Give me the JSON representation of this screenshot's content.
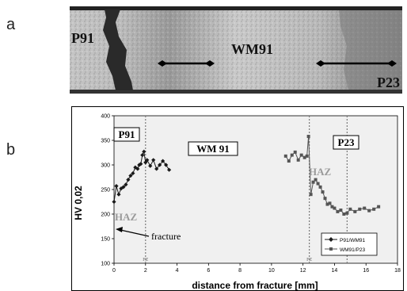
{
  "panels": {
    "a": "a",
    "b": "b"
  },
  "micrograph": {
    "labels": {
      "left": "P91",
      "center": "WM91",
      "right": "P23"
    }
  },
  "colors": {
    "frame": "#000000",
    "plot_bg": "#f0f0f0",
    "grid_dashed": "#7a7a7a",
    "haz_text": "#9a9a9a",
    "series": "#1a1a1a"
  },
  "chart_data": {
    "type": "line",
    "xlabel": "distance from fracture  [mm]",
    "ylabel": "HV 0,02",
    "xlim": [
      0,
      18
    ],
    "ylim": [
      100,
      400
    ],
    "xticks": [
      "0",
      "2",
      "4",
      "6",
      "8",
      "10",
      "12",
      "14",
      "16",
      "18"
    ],
    "yticks": [
      "100",
      "150",
      "200",
      "250",
      "300",
      "350",
      "400"
    ],
    "grid": false,
    "legend_position": "bottom-right",
    "series": [
      {
        "name": "P91/WM91",
        "marker": "diamond",
        "x": [
          0.0,
          0.15,
          0.3,
          0.45,
          0.6,
          0.75,
          0.9,
          1.05,
          1.2,
          1.35,
          1.5,
          1.6,
          1.7,
          1.8,
          1.9,
          2.0,
          2.1,
          2.3,
          2.5,
          2.7,
          2.9,
          3.1,
          3.3,
          3.5
        ],
        "y": [
          225,
          257,
          240,
          252,
          255,
          260,
          270,
          278,
          283,
          295,
          292,
          300,
          302,
          320,
          327,
          305,
          310,
          298,
          310,
          292,
          300,
          308,
          300,
          290
        ]
      },
      {
        "name": "WM91/P23",
        "marker": "square",
        "x": [
          10.9,
          11.1,
          11.3,
          11.5,
          11.7,
          11.9,
          12.1,
          12.25,
          12.35,
          12.5,
          12.65,
          12.8,
          12.95,
          13.1,
          13.25,
          13.4,
          13.55,
          13.7,
          13.85,
          14.0,
          14.2,
          14.4,
          14.6,
          14.8,
          15.0,
          15.3,
          15.6,
          15.9,
          16.2,
          16.5,
          16.8
        ],
        "y": [
          318,
          308,
          320,
          326,
          310,
          320,
          315,
          318,
          358,
          240,
          265,
          270,
          262,
          255,
          245,
          232,
          220,
          222,
          215,
          212,
          205,
          208,
          200,
          202,
          210,
          205,
          210,
          212,
          207,
          210,
          215
        ]
      }
    ],
    "vertical_lines": [
      {
        "x": 2.0,
        "label": "FZ"
      },
      {
        "x": 12.4,
        "label": "FZ"
      },
      {
        "x": 14.8,
        "label": ""
      }
    ],
    "annotations": {
      "p91": "P91",
      "wm91": "WM 91",
      "p23": "P23",
      "haz_left": "HAZ",
      "haz_right": "HAZ",
      "fracture": "fracture"
    }
  }
}
